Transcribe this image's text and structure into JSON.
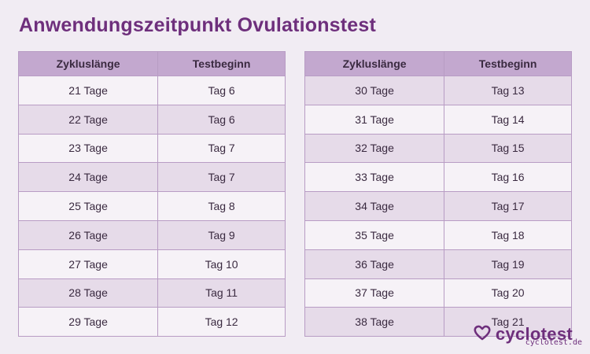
{
  "title": "Anwendungszeitpunkt Ovulationstest",
  "table_headers": [
    "Zykluslänge",
    "Testbeginn"
  ],
  "left_rows": [
    [
      "21 Tage",
      "Tag 6"
    ],
    [
      "22 Tage",
      "Tag 6"
    ],
    [
      "23 Tage",
      "Tag 7"
    ],
    [
      "24 Tage",
      "Tag 7"
    ],
    [
      "25 Tage",
      "Tag 8"
    ],
    [
      "26 Tage",
      "Tag 9"
    ],
    [
      "27 Tage",
      "Tag 10"
    ],
    [
      "28 Tage",
      "Tag 11"
    ],
    [
      "29 Tage",
      "Tag 12"
    ]
  ],
  "right_rows": [
    [
      "30 Tage",
      "Tag 13"
    ],
    [
      "31 Tage",
      "Tag 14"
    ],
    [
      "32 Tage",
      "Tag 15"
    ],
    [
      "33 Tage",
      "Tag 16"
    ],
    [
      "34 Tage",
      "Tag 17"
    ],
    [
      "35 Tage",
      "Tag 18"
    ],
    [
      "36 Tage",
      "Tag 19"
    ],
    [
      "37 Tage",
      "Tag 20"
    ],
    [
      "38 Tage",
      "Tag 21"
    ]
  ],
  "brand": {
    "name": "cyclotest",
    "url": "cyclotest.de",
    "logo_icon": "heart-outline-icon",
    "color": "#6e2f7c"
  }
}
